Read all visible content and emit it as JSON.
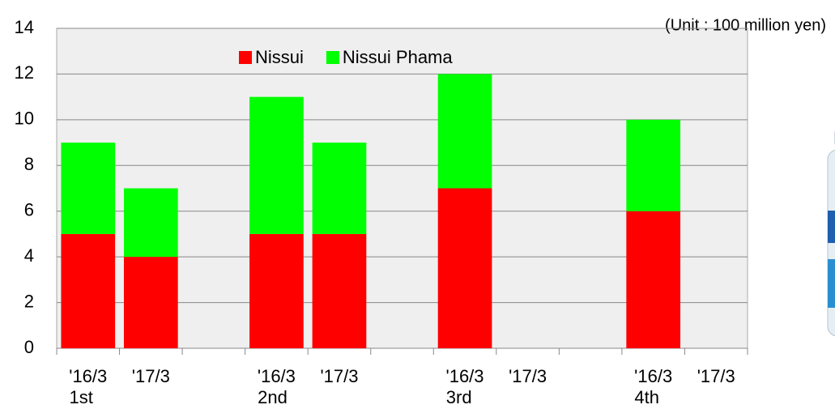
{
  "chart_data": {
    "type": "stacked-bar",
    "unit_label": "(Unit : 100 million yen)",
    "categories": [
      "'16/3",
      "'17/3",
      "'16/3",
      "'17/3",
      "'16/3",
      "'17/3",
      "'16/3",
      "'17/3"
    ],
    "groups": [
      "1st",
      "2nd",
      "3rd",
      "4th"
    ],
    "series": [
      {
        "name": "Nissui",
        "color": "#ff0000",
        "values": [
          5,
          4,
          5,
          5,
          7,
          null,
          6,
          null
        ]
      },
      {
        "name": "Nissui Phama",
        "color": "#00ff00",
        "values": [
          4,
          3,
          6,
          4,
          5,
          null,
          4,
          null
        ]
      }
    ],
    "ylim": [
      0,
      14
    ],
    "yticks": [
      0,
      2,
      4,
      6,
      8,
      10,
      12,
      14
    ],
    "grid": true
  }
}
